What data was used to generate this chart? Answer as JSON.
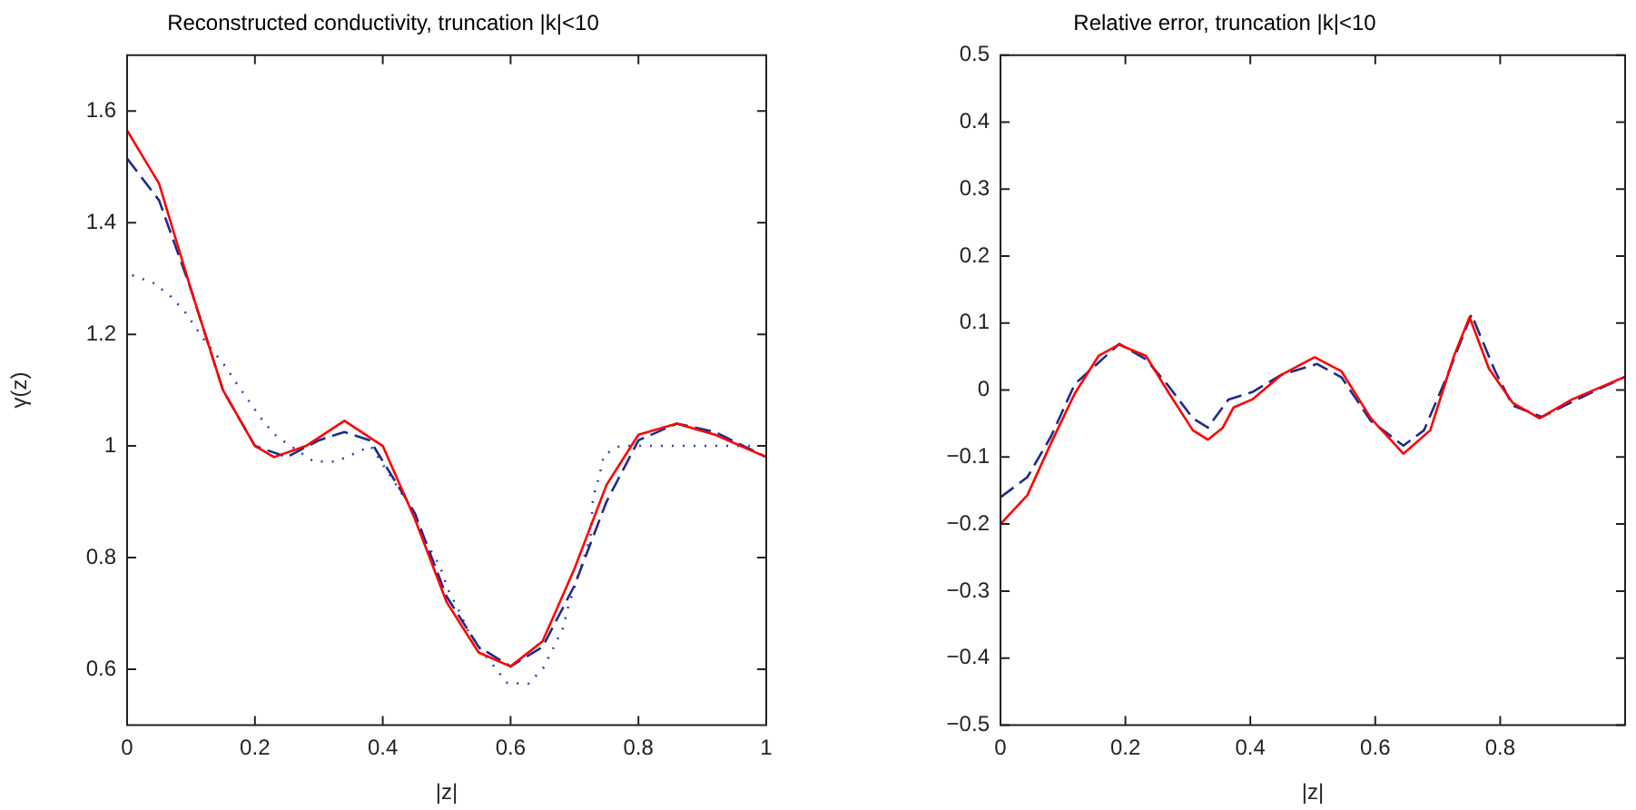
{
  "chart_data": [
    {
      "type": "line",
      "title": "Reconstructed conductivity, truncation |k|<10",
      "xlabel": "|z|",
      "ylabel": "γ(z)",
      "xlim": [
        0,
        1
      ],
      "xticks": [
        0,
        0.2,
        0.4,
        0.6,
        0.8,
        1
      ],
      "ylim": [
        0.5,
        1.7
      ],
      "yticks": [
        0.6,
        0.8,
        1,
        1.2,
        1.4,
        1.6
      ],
      "grid": false,
      "legend": false,
      "series": [
        {
          "color": "#ff0000",
          "line_style": "solid",
          "x": [
            0,
            0.05,
            0.1,
            0.15,
            0.2,
            0.23,
            0.28,
            0.34,
            0.4,
            0.45,
            0.5,
            0.55,
            0.6,
            0.65,
            0.7,
            0.75,
            0.8,
            0.86,
            0.92,
            1
          ],
          "values": [
            1.565,
            1.47,
            1.28,
            1.1,
            1.0,
            0.98,
            1.0,
            1.045,
            1.0,
            0.87,
            0.72,
            0.63,
            0.605,
            0.65,
            0.78,
            0.93,
            1.02,
            1.04,
            1.02,
            0.98
          ]
        },
        {
          "color": "#1c2b8c",
          "line_style": "dashed",
          "x": [
            0,
            0.05,
            0.1,
            0.15,
            0.2,
            0.25,
            0.3,
            0.34,
            0.38,
            0.45,
            0.5,
            0.55,
            0.6,
            0.65,
            0.7,
            0.75,
            0.8,
            0.86,
            0.92,
            1
          ],
          "values": [
            1.515,
            1.44,
            1.28,
            1.1,
            1.0,
            0.98,
            1.01,
            1.025,
            1.01,
            0.88,
            0.73,
            0.64,
            0.605,
            0.64,
            0.75,
            0.9,
            1.01,
            1.04,
            1.025,
            0.98
          ]
        },
        {
          "color": "#3040b0",
          "line_style": "dotted",
          "x": [
            0.008,
            0.043,
            0.069,
            0.092,
            0.118,
            0.154,
            0.173,
            0.213,
            0.235,
            0.292,
            0.327,
            0.357,
            0.381,
            0.443,
            0.47,
            0.489,
            0.502,
            0.519,
            0.533,
            0.553,
            0.595,
            0.628,
            0.651,
            0.666,
            0.682,
            0.69,
            0.725,
            0.729,
            0.739,
            0.746,
            0.771,
            0.809,
            0.839,
            0.872,
            0.905,
            0.938,
            0.976
          ],
          "values": [
            1.306,
            1.291,
            1.267,
            1.238,
            1.194,
            1.142,
            1.109,
            1.044,
            1.016,
            0.972,
            0.972,
            0.987,
            1.0,
            0.892,
            0.822,
            0.786,
            0.743,
            0.705,
            0.67,
            0.635,
            0.575,
            0.574,
            0.602,
            0.636,
            0.674,
            0.711,
            0.837,
            0.908,
            0.946,
            0.984,
            1.0,
            1.0,
            1.0,
            1.0,
            1.0,
            1.0,
            1.0
          ]
        }
      ]
    },
    {
      "type": "line",
      "title": "Relative error, truncation |k|<10",
      "xlabel": "|z|",
      "xlim": [
        0,
        1
      ],
      "xticks": [
        0,
        0.2,
        0.4,
        0.6,
        0.8,
        {
          "value": 1,
          "label": null
        }
      ],
      "ylim": [
        -0.5,
        0.5
      ],
      "yticks": [
        {
          "value": -0.5,
          "label": "−0.5"
        },
        {
          "value": -0.4,
          "label": "−0.4"
        },
        {
          "value": -0.3,
          "label": "−0.3"
        },
        {
          "value": -0.2,
          "label": "−0.2"
        },
        {
          "value": -0.1,
          "label": "−0.1"
        },
        0,
        0.1,
        0.2,
        0.3,
        0.4,
        0.5
      ],
      "grid": false,
      "legend": false,
      "series": [
        {
          "color": "#ff0000",
          "line_style": "solid",
          "x": [
            0,
            0.043,
            0.081,
            0.119,
            0.157,
            0.19,
            0.233,
            0.27,
            0.308,
            0.332,
            0.356,
            0.373,
            0.403,
            0.45,
            0.503,
            0.546,
            0.593,
            0.645,
            0.688,
            0.726,
            0.751,
            0.782,
            0.82,
            0.863,
            0.915,
            1
          ],
          "values": [
            -0.2,
            -0.157,
            -0.079,
            -0.005,
            0.051,
            0.068,
            0.051,
            -0.005,
            -0.06,
            -0.074,
            -0.056,
            -0.026,
            -0.014,
            0.023,
            0.049,
            0.028,
            -0.042,
            -0.095,
            -0.06,
            0.051,
            0.109,
            0.032,
            -0.019,
            -0.042,
            -0.014,
            0.02
          ]
        },
        {
          "color": "#1c2b8c",
          "line_style": "dashed",
          "x": [
            0,
            0.043,
            0.081,
            0.119,
            0.19,
            0.233,
            0.27,
            0.308,
            0.332,
            0.365,
            0.403,
            0.45,
            0.507,
            0.546,
            0.593,
            0.645,
            0.678,
            0.716,
            0.754,
            0.792,
            0.82,
            0.867,
            0.934,
            1
          ],
          "values": [
            -0.16,
            -0.13,
            -0.069,
            0.009,
            0.069,
            0.046,
            0.005,
            -0.042,
            -0.056,
            -0.014,
            -0.003,
            0.023,
            0.039,
            0.019,
            -0.046,
            -0.083,
            -0.06,
            0.023,
            0.113,
            0.028,
            -0.023,
            -0.04,
            -0.009,
            0.02
          ]
        }
      ]
    }
  ]
}
